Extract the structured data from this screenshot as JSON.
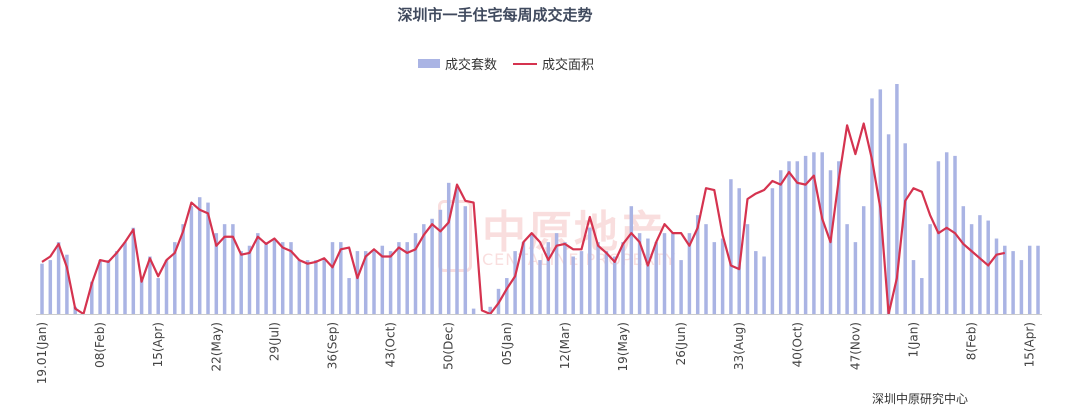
{
  "title": "深圳市一手住宅每周成交走势",
  "source": "深圳中原研究中心",
  "watermark": {
    "cn": "中原地产",
    "en": "CENTALINE PROPERTY"
  },
  "colors": {
    "bar": "#aab4e4",
    "line": "#d5334f",
    "axis": "#cccccc"
  },
  "chart_data": {
    "type": "bar",
    "title": "深圳市一手住宅每周成交走势",
    "xlabel": "",
    "ylabel": "",
    "legend_position": "top-center",
    "grid": false,
    "x_tick_labels": [
      "19.01(Jan)",
      "08(Feb)",
      "15(Apr)",
      "22(May)",
      "29(Jul)",
      "36(Sep)",
      "43(Oct)",
      "50(Dec)",
      "05(Jan)",
      "12(Mar)",
      "19(May)",
      "26(Jun)",
      "33(Aug)",
      "40(Oct)",
      "47(Nov)",
      "1(Jan)",
      "8(Feb)",
      "15(Apr)"
    ],
    "series": [
      {
        "name": "成交套数",
        "type": "bar",
        "values": [
          28,
          30,
          40,
          33,
          4,
          0,
          18,
          30,
          30,
          35,
          40,
          48,
          20,
          32,
          20,
          30,
          40,
          50,
          60,
          65,
          62,
          45,
          50,
          50,
          35,
          38,
          45,
          40,
          42,
          40,
          40,
          30,
          30,
          30,
          30,
          40,
          40,
          20,
          35,
          35,
          35,
          38,
          35,
          40,
          40,
          45,
          50,
          53,
          58,
          73,
          70,
          60,
          3,
          0,
          4,
          14,
          20,
          35,
          40,
          45,
          30,
          40,
          45,
          40,
          32,
          35,
          48,
          40,
          35,
          32,
          40,
          60,
          45,
          42,
          40,
          45,
          45,
          30,
          45,
          55,
          50,
          40,
          42,
          75,
          70,
          50,
          35,
          32,
          70,
          80,
          85,
          85,
          88,
          90,
          90,
          80,
          85,
          50,
          40,
          60,
          120,
          125,
          100,
          128,
          95,
          30,
          20,
          50,
          85,
          90,
          88,
          60,
          50,
          55,
          52,
          42,
          38,
          35,
          30,
          38,
          38
        ]
      },
      {
        "name": "成交面积",
        "type": "line",
        "values": [
          29,
          32,
          39,
          26,
          3,
          0,
          17,
          30,
          29,
          34,
          40,
          47,
          18,
          31,
          21,
          30,
          34,
          46,
          62,
          58,
          56,
          38,
          43,
          43,
          33,
          34,
          43,
          39,
          42,
          37,
          35,
          30,
          28,
          29,
          31,
          26,
          36,
          37,
          20,
          32,
          36,
          32,
          32,
          37,
          34,
          36,
          44,
          50,
          46,
          51,
          72,
          63,
          62,
          2,
          0,
          6,
          14,
          21,
          40,
          45,
          40,
          30,
          38,
          39,
          36,
          36,
          54,
          38,
          34,
          29,
          39,
          45,
          40,
          27,
          40,
          50,
          45,
          45,
          38,
          48,
          70,
          69,
          44,
          27,
          25,
          64,
          67,
          69,
          74,
          72,
          79,
          73,
          72,
          77,
          53,
          40,
          75,
          105,
          89,
          106,
          86,
          59,
          0,
          20,
          63,
          70,
          68,
          55,
          45,
          48,
          45,
          39,
          35,
          31,
          27,
          33,
          34
        ]
      }
    ]
  }
}
